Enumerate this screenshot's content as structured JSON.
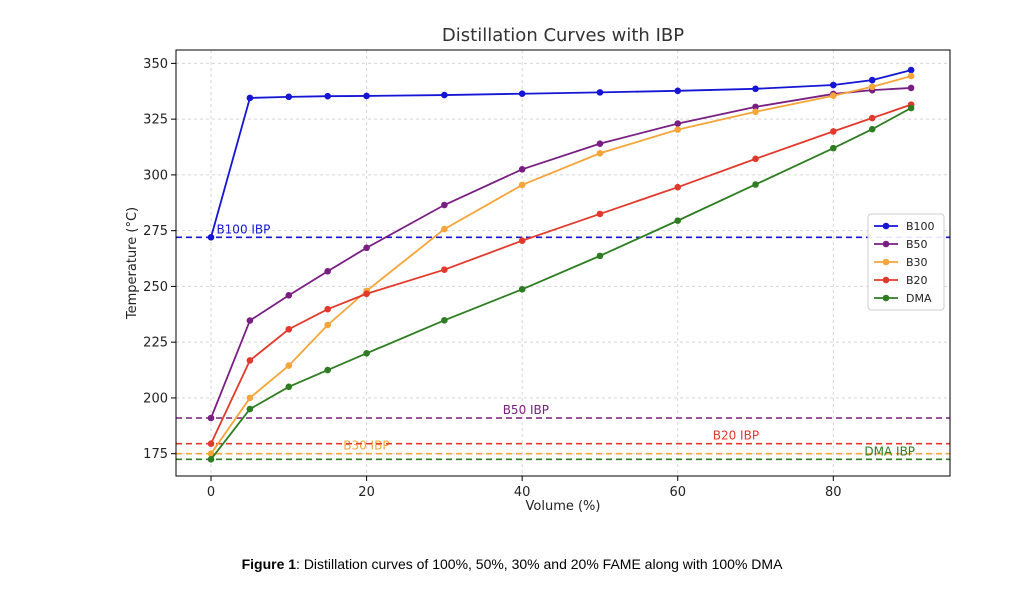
{
  "caption": {
    "label": "Figure 1",
    "text": ": Distillation curves of 100%, 50%, 30% and 20% FAME along with 100% DMA"
  },
  "chart_data": {
    "type": "line",
    "title": "Distillation Curves with IBP",
    "xlabel": "Volume (%)",
    "ylabel": "Temperature (°C)",
    "xlim": [
      -4.5,
      95
    ],
    "ylim": [
      165,
      356
    ],
    "xticks": [
      0,
      20,
      40,
      60,
      80
    ],
    "yticks": [
      175,
      200,
      225,
      250,
      275,
      300,
      325,
      350
    ],
    "grid": true,
    "legend_position": "right",
    "x": [
      0,
      5,
      10,
      15,
      20,
      30,
      40,
      50,
      60,
      70,
      80,
      85,
      90
    ],
    "series": [
      {
        "name": "B100",
        "color": "#1515d6",
        "values": [
          272,
          334.5,
          335,
          335.3,
          335.4,
          335.8,
          336.4,
          337,
          337.7,
          338.6,
          340.3,
          342.5,
          347
        ]
      },
      {
        "name": "B50",
        "color": "#7a1f82",
        "values": [
          191,
          234.7,
          246,
          256.8,
          267.3,
          286.5,
          302.5,
          314,
          323,
          330.5,
          336.3,
          338,
          339
        ]
      },
      {
        "name": "B30",
        "color": "#f5a53a",
        "values": [
          175,
          200,
          214.5,
          232.7,
          248,
          275.7,
          295.5,
          309.7,
          320.3,
          328.3,
          335.5,
          339.5,
          344.3
        ]
      },
      {
        "name": "B20",
        "color": "#e3392c",
        "values": [
          179.5,
          216.8,
          230.8,
          239.8,
          246.7,
          257.5,
          270.5,
          282.5,
          294.5,
          307.2,
          319.5,
          325.5,
          331.5
        ]
      },
      {
        "name": "DMA",
        "color": "#2e7d22",
        "values": [
          172.5,
          195,
          205,
          212.5,
          220,
          234.8,
          248.7,
          263.7,
          279.5,
          295.7,
          312,
          320.5,
          330
        ]
      }
    ],
    "ibp_lines": [
      {
        "series": "B100",
        "label": "B100 IBP",
        "value": 272,
        "color": "#1515d6",
        "label_x": 0.7
      },
      {
        "series": "B50",
        "label": "B50 IBP",
        "value": 191,
        "color": "#7a1f82",
        "label_x": 37.5
      },
      {
        "series": "B30",
        "label": "B30 IBP",
        "value": 175,
        "color": "#f5a53a",
        "label_x": 17
      },
      {
        "series": "B20",
        "label": "B20 IBP",
        "value": 179.5,
        "color": "#e3392c",
        "label_x": 64.5
      },
      {
        "series": "DMA",
        "label": "DMA IBP",
        "value": 172.5,
        "color": "#2e7d22",
        "label_x": 84
      }
    ]
  }
}
